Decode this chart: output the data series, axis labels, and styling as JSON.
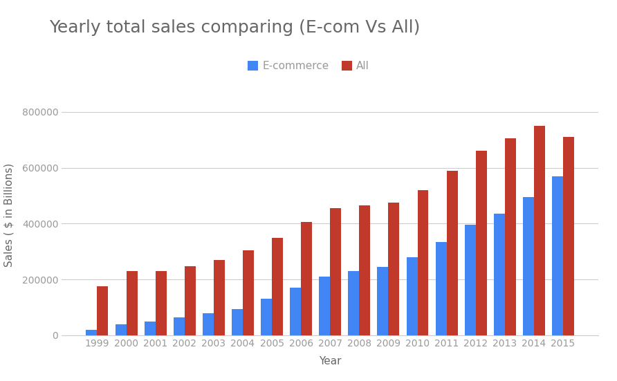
{
  "title": "Yearly total sales comparing (E-com Vs All)",
  "xlabel": "Year",
  "ylabel": "Sales ( $ in Billions)",
  "years": [
    1999,
    2000,
    2001,
    2002,
    2003,
    2004,
    2005,
    2006,
    2007,
    2008,
    2009,
    2010,
    2011,
    2012,
    2013,
    2014,
    2015
  ],
  "ecommerce": [
    20000,
    40000,
    50000,
    65000,
    80000,
    95000,
    130000,
    170000,
    210000,
    230000,
    245000,
    280000,
    335000,
    395000,
    435000,
    495000,
    570000
  ],
  "all": [
    175000,
    230000,
    230000,
    248000,
    270000,
    305000,
    350000,
    405000,
    455000,
    465000,
    475000,
    520000,
    590000,
    660000,
    705000,
    750000,
    710000
  ],
  "ecommerce_color": "#4285F4",
  "all_color": "#C0392B",
  "background_color": "#FFFFFF",
  "grid_color": "#CCCCCC",
  "title_fontsize": 18,
  "axis_label_fontsize": 11,
  "tick_fontsize": 10,
  "legend_fontsize": 11,
  "ylim": [
    0,
    860000
  ],
  "yticks": [
    0,
    200000,
    400000,
    600000,
    800000
  ],
  "bar_width": 0.38,
  "title_color": "#666666",
  "axis_label_color": "#666666",
  "tick_color": "#999999",
  "spine_color": "#CCCCCC"
}
